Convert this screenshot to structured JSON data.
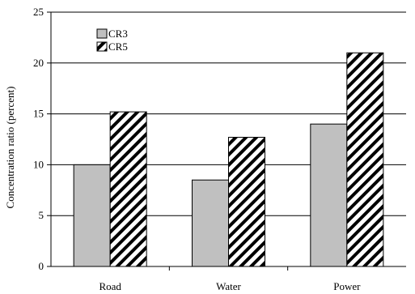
{
  "chart_data": {
    "type": "bar",
    "title": "",
    "xlabel": "",
    "ylabel": "Concentration ratio (percent)",
    "ylim": [
      0,
      25
    ],
    "yticks": [
      0,
      5,
      10,
      15,
      20,
      25
    ],
    "grid": true,
    "legend": "top-left",
    "categories": [
      "Road",
      "Water",
      "Power"
    ],
    "series": [
      {
        "name": "CR3",
        "values": [
          10,
          8.5,
          14
        ],
        "color": "#c0c0c0",
        "pattern": "solid"
      },
      {
        "name": "CR5",
        "values": [
          15.2,
          12.7,
          21
        ],
        "color": "#000000",
        "pattern": "diagonal-hatch"
      }
    ]
  }
}
